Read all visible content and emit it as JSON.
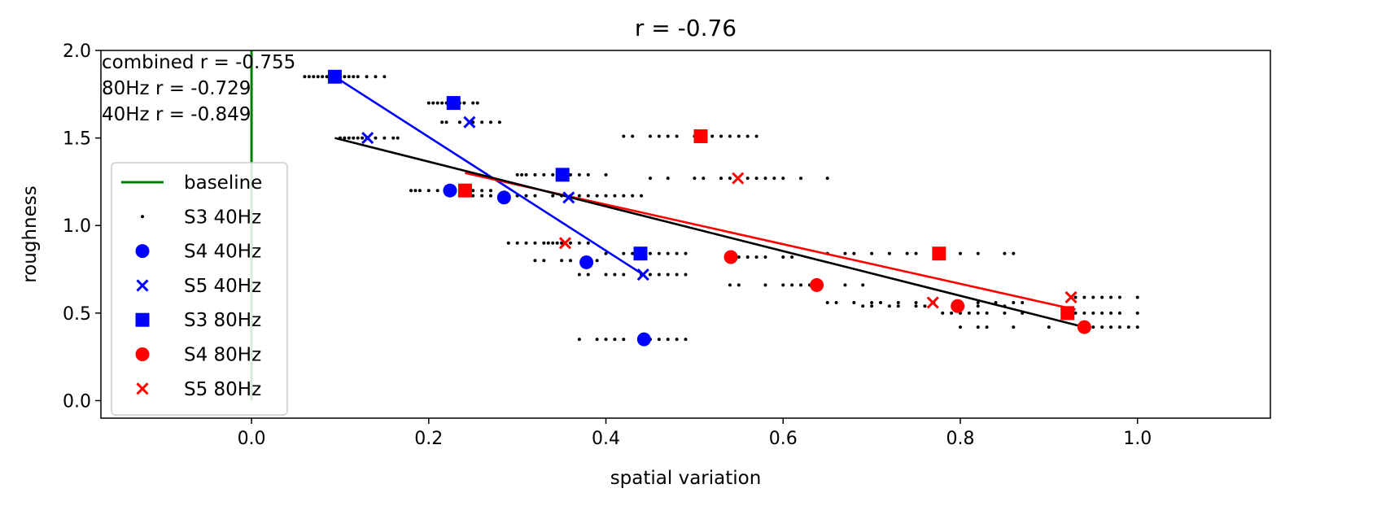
{
  "chart_data": {
    "type": "scatter",
    "title": "r = -0.76",
    "xlabel": "spatial variation",
    "ylabel": "roughness",
    "xlim": [
      -0.17,
      1.15
    ],
    "ylim": [
      -0.1,
      2.0
    ],
    "xticks": [
      "0.0",
      "0.2",
      "0.4",
      "0.6",
      "0.8",
      "1.0"
    ],
    "xtick_values": [
      0.0,
      0.2,
      0.4,
      0.6,
      0.8,
      1.0
    ],
    "yticks": [
      "0.0",
      "0.5",
      "1.0",
      "1.5",
      "2.0"
    ],
    "ytick_values": [
      0.0,
      0.5,
      1.0,
      1.5,
      2.0
    ],
    "legend_placement": "left",
    "grid": false,
    "annotations": [
      "combined r = -0.755",
      "80Hz r = -0.729",
      "40Hz r = -0.849"
    ],
    "baseline": {
      "name": "baseline",
      "color": "#008000",
      "x": 0.0,
      "y_range": [
        0.0,
        2.0
      ]
    },
    "series": [
      {
        "name": "S3 40Hz",
        "marker": "dot",
        "color": "#000000",
        "points": [
          [
            0.06,
            1.85
          ],
          [
            0.065,
            1.85
          ],
          [
            0.07,
            1.85
          ],
          [
            0.075,
            1.85
          ],
          [
            0.08,
            1.85
          ],
          [
            0.085,
            1.85
          ],
          [
            0.09,
            1.85
          ],
          [
            0.1,
            1.85
          ],
          [
            0.105,
            1.85
          ],
          [
            0.11,
            1.85
          ],
          [
            0.115,
            1.85
          ],
          [
            0.12,
            1.85
          ],
          [
            0.13,
            1.85
          ],
          [
            0.14,
            1.85
          ],
          [
            0.15,
            1.85
          ],
          [
            0.1,
            1.5
          ],
          [
            0.105,
            1.5
          ],
          [
            0.11,
            1.5
          ],
          [
            0.115,
            1.5
          ],
          [
            0.12,
            1.5
          ],
          [
            0.125,
            1.5
          ],
          [
            0.13,
            1.5
          ],
          [
            0.14,
            1.5
          ],
          [
            0.15,
            1.5
          ],
          [
            0.16,
            1.5
          ],
          [
            0.165,
            1.5
          ],
          [
            0.2,
            1.7
          ],
          [
            0.205,
            1.7
          ],
          [
            0.21,
            1.7
          ],
          [
            0.215,
            1.7
          ],
          [
            0.22,
            1.7
          ],
          [
            0.225,
            1.7
          ],
          [
            0.235,
            1.7
          ],
          [
            0.24,
            1.7
          ],
          [
            0.25,
            1.7
          ],
          [
            0.255,
            1.7
          ],
          [
            0.215,
            1.59
          ],
          [
            0.22,
            1.59
          ],
          [
            0.235,
            1.59
          ],
          [
            0.25,
            1.59
          ],
          [
            0.26,
            1.59
          ],
          [
            0.27,
            1.59
          ],
          [
            0.28,
            1.59
          ],
          [
            0.18,
            1.2
          ],
          [
            0.185,
            1.2
          ],
          [
            0.19,
            1.2
          ],
          [
            0.2,
            1.2
          ],
          [
            0.21,
            1.2
          ],
          [
            0.22,
            1.2
          ],
          [
            0.23,
            1.2
          ],
          [
            0.24,
            1.2
          ],
          [
            0.25,
            1.2
          ],
          [
            0.26,
            1.2
          ],
          [
            0.27,
            1.2
          ],
          [
            0.25,
            1.17
          ],
          [
            0.26,
            1.17
          ],
          [
            0.27,
            1.17
          ],
          [
            0.28,
            1.17
          ],
          [
            0.29,
            1.17
          ],
          [
            0.3,
            1.17
          ],
          [
            0.31,
            1.17
          ],
          [
            0.32,
            1.17
          ],
          [
            0.34,
            1.17
          ],
          [
            0.35,
            1.17
          ],
          [
            0.36,
            1.17
          ],
          [
            0.37,
            1.17
          ],
          [
            0.38,
            1.17
          ],
          [
            0.39,
            1.17
          ],
          [
            0.4,
            1.17
          ],
          [
            0.41,
            1.17
          ],
          [
            0.42,
            1.17
          ],
          [
            0.43,
            1.17
          ],
          [
            0.44,
            1.17
          ],
          [
            0.3,
            1.29
          ],
          [
            0.305,
            1.29
          ],
          [
            0.31,
            1.29
          ],
          [
            0.32,
            1.29
          ],
          [
            0.33,
            1.29
          ],
          [
            0.34,
            1.29
          ],
          [
            0.35,
            1.29
          ],
          [
            0.36,
            1.29
          ],
          [
            0.37,
            1.29
          ],
          [
            0.38,
            1.29
          ],
          [
            0.4,
            1.29
          ],
          [
            0.29,
            0.9
          ],
          [
            0.3,
            0.9
          ],
          [
            0.31,
            0.9
          ],
          [
            0.32,
            0.9
          ],
          [
            0.33,
            0.9
          ],
          [
            0.335,
            0.9
          ],
          [
            0.34,
            0.9
          ],
          [
            0.345,
            0.9
          ],
          [
            0.35,
            0.9
          ],
          [
            0.36,
            0.9
          ],
          [
            0.37,
            0.9
          ],
          [
            0.38,
            0.9
          ],
          [
            0.32,
            0.8
          ],
          [
            0.33,
            0.8
          ],
          [
            0.35,
            0.8
          ],
          [
            0.36,
            0.8
          ],
          [
            0.38,
            0.8
          ],
          [
            0.39,
            0.8
          ],
          [
            0.37,
            0.72
          ],
          [
            0.38,
            0.72
          ],
          [
            0.4,
            0.72
          ],
          [
            0.41,
            0.72
          ],
          [
            0.42,
            0.72
          ],
          [
            0.44,
            0.72
          ],
          [
            0.45,
            0.72
          ],
          [
            0.46,
            0.72
          ],
          [
            0.47,
            0.72
          ],
          [
            0.48,
            0.72
          ],
          [
            0.49,
            0.72
          ],
          [
            0.4,
            0.84
          ],
          [
            0.42,
            0.84
          ],
          [
            0.43,
            0.84
          ],
          [
            0.44,
            0.84
          ],
          [
            0.45,
            0.84
          ],
          [
            0.46,
            0.84
          ],
          [
            0.47,
            0.84
          ],
          [
            0.48,
            0.84
          ],
          [
            0.49,
            0.84
          ],
          [
            0.37,
            0.35
          ],
          [
            0.39,
            0.35
          ],
          [
            0.4,
            0.35
          ],
          [
            0.41,
            0.35
          ],
          [
            0.42,
            0.35
          ],
          [
            0.44,
            0.35
          ],
          [
            0.45,
            0.35
          ],
          [
            0.46,
            0.35
          ],
          [
            0.47,
            0.35
          ],
          [
            0.48,
            0.35
          ],
          [
            0.49,
            0.35
          ],
          [
            0.42,
            1.51
          ],
          [
            0.43,
            1.51
          ],
          [
            0.45,
            1.51
          ],
          [
            0.46,
            1.51
          ],
          [
            0.47,
            1.51
          ],
          [
            0.48,
            1.51
          ],
          [
            0.5,
            1.51
          ],
          [
            0.52,
            1.51
          ],
          [
            0.53,
            1.51
          ],
          [
            0.54,
            1.51
          ],
          [
            0.55,
            1.51
          ],
          [
            0.56,
            1.51
          ],
          [
            0.57,
            1.51
          ],
          [
            0.45,
            1.27
          ],
          [
            0.47,
            1.27
          ],
          [
            0.5,
            1.27
          ],
          [
            0.51,
            1.27
          ],
          [
            0.53,
            1.27
          ],
          [
            0.54,
            1.27
          ],
          [
            0.56,
            1.27
          ],
          [
            0.57,
            1.27
          ],
          [
            0.58,
            1.27
          ],
          [
            0.59,
            1.27
          ],
          [
            0.6,
            1.27
          ],
          [
            0.62,
            1.27
          ],
          [
            0.65,
            1.27
          ],
          [
            0.55,
            0.82
          ],
          [
            0.56,
            0.82
          ],
          [
            0.57,
            0.82
          ],
          [
            0.58,
            0.82
          ],
          [
            0.6,
            0.82
          ],
          [
            0.61,
            0.82
          ],
          [
            0.54,
            0.66
          ],
          [
            0.55,
            0.66
          ],
          [
            0.58,
            0.66
          ],
          [
            0.6,
            0.66
          ],
          [
            0.61,
            0.66
          ],
          [
            0.62,
            0.66
          ],
          [
            0.63,
            0.66
          ],
          [
            0.64,
            0.66
          ],
          [
            0.67,
            0.66
          ],
          [
            0.69,
            0.66
          ],
          [
            0.65,
            0.84
          ],
          [
            0.67,
            0.84
          ],
          [
            0.68,
            0.84
          ],
          [
            0.7,
            0.84
          ],
          [
            0.72,
            0.84
          ],
          [
            0.74,
            0.84
          ],
          [
            0.75,
            0.84
          ],
          [
            0.78,
            0.84
          ],
          [
            0.8,
            0.84
          ],
          [
            0.82,
            0.84
          ],
          [
            0.85,
            0.84
          ],
          [
            0.86,
            0.84
          ],
          [
            0.65,
            0.56
          ],
          [
            0.66,
            0.56
          ],
          [
            0.68,
            0.56
          ],
          [
            0.7,
            0.56
          ],
          [
            0.71,
            0.56
          ],
          [
            0.73,
            0.56
          ],
          [
            0.75,
            0.56
          ],
          [
            0.77,
            0.56
          ],
          [
            0.8,
            0.56
          ],
          [
            0.82,
            0.56
          ],
          [
            0.84,
            0.56
          ],
          [
            0.86,
            0.56
          ],
          [
            0.87,
            0.56
          ],
          [
            0.69,
            0.54
          ],
          [
            0.7,
            0.54
          ],
          [
            0.72,
            0.54
          ],
          [
            0.73,
            0.54
          ],
          [
            0.75,
            0.54
          ],
          [
            0.76,
            0.54
          ],
          [
            0.8,
            0.54
          ],
          [
            0.82,
            0.54
          ],
          [
            0.85,
            0.54
          ],
          [
            0.78,
            0.5
          ],
          [
            0.79,
            0.5
          ],
          [
            0.8,
            0.5
          ],
          [
            0.81,
            0.5
          ],
          [
            0.82,
            0.5
          ],
          [
            0.83,
            0.5
          ],
          [
            0.85,
            0.5
          ],
          [
            0.87,
            0.5
          ],
          [
            0.8,
            0.42
          ],
          [
            0.82,
            0.42
          ],
          [
            0.83,
            0.42
          ],
          [
            0.86,
            0.42
          ],
          [
            0.9,
            0.42
          ],
          [
            0.93,
            0.59
          ],
          [
            0.94,
            0.59
          ],
          [
            0.95,
            0.59
          ],
          [
            0.96,
            0.59
          ],
          [
            0.97,
            0.59
          ],
          [
            0.98,
            0.59
          ],
          [
            1.0,
            0.59
          ],
          [
            0.92,
            0.5
          ],
          [
            0.93,
            0.5
          ],
          [
            0.94,
            0.5
          ],
          [
            0.95,
            0.5
          ],
          [
            0.96,
            0.5
          ],
          [
            0.97,
            0.5
          ],
          [
            0.98,
            0.5
          ],
          [
            1.0,
            0.5
          ],
          [
            0.95,
            0.42
          ],
          [
            0.96,
            0.42
          ],
          [
            0.97,
            0.42
          ],
          [
            0.98,
            0.42
          ],
          [
            0.99,
            0.42
          ],
          [
            1.0,
            0.42
          ]
        ]
      },
      {
        "name": "S4 40Hz",
        "marker": "circle",
        "color": "#0000ff",
        "points": [
          [
            0.224,
            1.2
          ],
          [
            0.285,
            1.16
          ],
          [
            0.378,
            0.79
          ],
          [
            0.443,
            0.35
          ]
        ]
      },
      {
        "name": "S5 40Hz",
        "marker": "x",
        "color": "#0000ff",
        "points": [
          [
            0.131,
            1.5
          ],
          [
            0.246,
            1.59
          ],
          [
            0.358,
            1.16
          ],
          [
            0.442,
            0.72
          ]
        ]
      },
      {
        "name": "S3 80Hz",
        "marker": "square",
        "color": "#0000ff",
        "points": [
          [
            0.094,
            1.85
          ],
          [
            0.228,
            1.7
          ],
          [
            0.351,
            1.29
          ],
          [
            0.439,
            0.84
          ]
        ]
      },
      {
        "name": "S4 80Hz",
        "marker": "circle",
        "color": "#ff0000",
        "points": [
          [
            0.541,
            0.82
          ],
          [
            0.638,
            0.66
          ],
          [
            0.797,
            0.54
          ],
          [
            0.94,
            0.42
          ]
        ]
      },
      {
        "name": "S5 80Hz",
        "marker": "x",
        "color": "#ff0000",
        "points": [
          [
            0.354,
            0.9
          ],
          [
            0.549,
            1.27
          ],
          [
            0.769,
            0.56
          ],
          [
            0.925,
            0.59
          ]
        ]
      },
      {
        "name": "",
        "marker": "square",
        "color": "#ff0000",
        "legend": false,
        "points": [
          [
            0.241,
            1.2
          ],
          [
            0.507,
            1.51
          ],
          [
            0.776,
            0.84
          ],
          [
            0.921,
            0.5
          ]
        ]
      }
    ],
    "fit_lines": [
      {
        "color": "#0000ff",
        "x": [
          0.094,
          0.442
        ],
        "y": [
          1.85,
          0.72
        ]
      },
      {
        "color": "#ff0000",
        "x": [
          0.241,
          0.93
        ],
        "y": [
          1.3,
          0.52
        ]
      },
      {
        "color": "#000000",
        "x": [
          0.094,
          0.94
        ],
        "y": [
          1.5,
          0.42
        ]
      }
    ]
  }
}
